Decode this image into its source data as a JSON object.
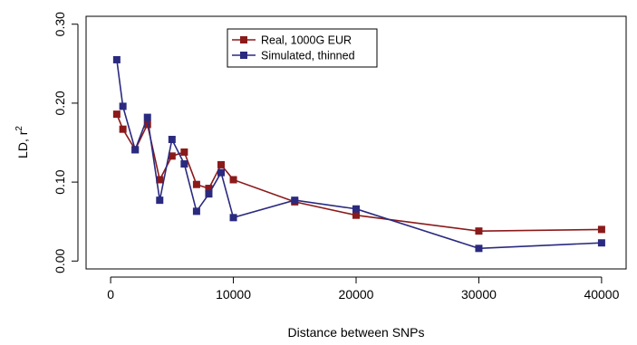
{
  "chart_data": {
    "type": "line",
    "xlabel": "Distance between SNPs",
    "ylabel_main": "LD, r",
    "ylabel_sup": "2",
    "xlim": [
      -2000,
      42000
    ],
    "ylim": [
      -0.01,
      0.31
    ],
    "xticks": [
      0,
      10000,
      20000,
      30000,
      40000
    ],
    "xtick_labels": [
      "0",
      "10000",
      "20000",
      "30000",
      "40000"
    ],
    "yticks": [
      0.0,
      0.1,
      0.2,
      0.3
    ],
    "ytick_labels": [
      "0.00",
      "0.10",
      "0.20",
      "0.30"
    ],
    "grid": false,
    "legend_position": "top-center",
    "series": [
      {
        "name": "Real, 1000G EUR",
        "color": "#8b1a1a",
        "marker": "square",
        "x": [
          500,
          1000,
          2000,
          3000,
          4000,
          5000,
          6000,
          7000,
          8000,
          9000,
          10000,
          15000,
          20000,
          30000,
          40000
        ],
        "y": [
          0.186,
          0.167,
          0.141,
          0.173,
          0.103,
          0.133,
          0.138,
          0.097,
          0.092,
          0.122,
          0.103,
          0.075,
          0.058,
          0.038,
          0.04
        ]
      },
      {
        "name": "Simulated, thinned",
        "color": "#2a2a80",
        "marker": "square",
        "x": [
          500,
          1000,
          2000,
          3000,
          4000,
          5000,
          6000,
          7000,
          8000,
          9000,
          10000,
          15000,
          20000,
          30000,
          40000
        ],
        "y": [
          0.255,
          0.196,
          0.141,
          0.182,
          0.077,
          0.154,
          0.123,
          0.063,
          0.085,
          0.112,
          0.055,
          0.077,
          0.066,
          0.016,
          0.023
        ]
      }
    ]
  }
}
